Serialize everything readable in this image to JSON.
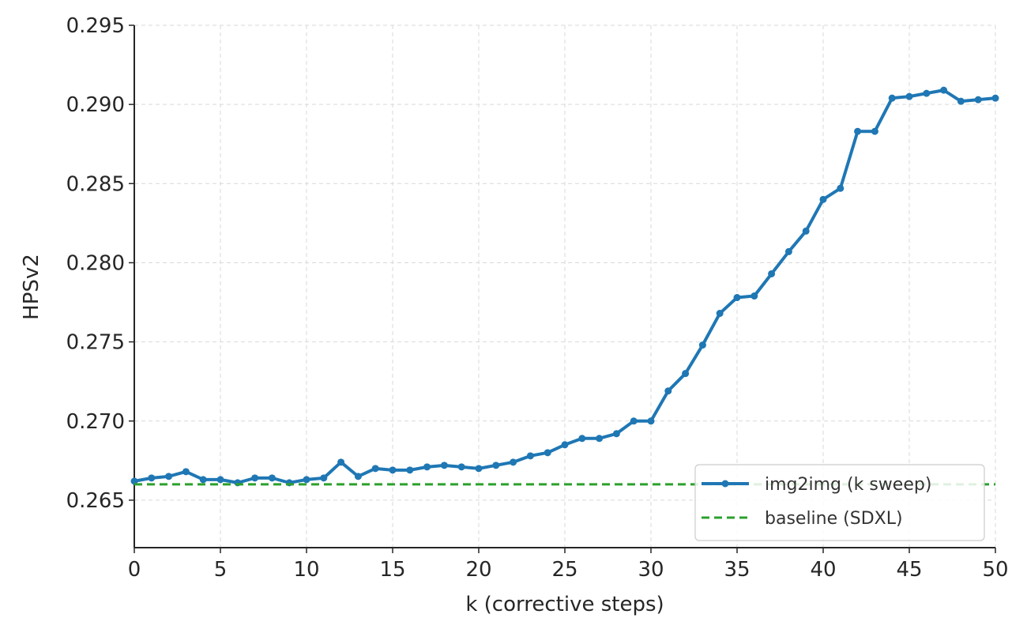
{
  "chart_data": {
    "type": "line",
    "title": "",
    "xlabel": "k (corrective steps)",
    "ylabel": "HPSv2",
    "xlim": [
      0,
      50
    ],
    "ylim": [
      0.262,
      0.295
    ],
    "xticks": [
      "0",
      "5",
      "10",
      "15",
      "20",
      "25",
      "30",
      "35",
      "40",
      "45",
      "50"
    ],
    "yticks": [
      "0.265",
      "0.270",
      "0.275",
      "0.280",
      "0.285",
      "0.290",
      "0.295"
    ],
    "grid": true,
    "legend_position": "lower-right",
    "series": [
      {
        "name": "img2img (k sweep)",
        "color": "#1f77b4",
        "style": "solid-with-markers",
        "x": [
          0,
          1,
          2,
          3,
          4,
          5,
          6,
          7,
          8,
          9,
          10,
          11,
          12,
          13,
          14,
          15,
          16,
          17,
          18,
          19,
          20,
          21,
          22,
          23,
          24,
          25,
          26,
          27,
          28,
          29,
          30,
          31,
          32,
          33,
          34,
          35,
          36,
          37,
          38,
          39,
          40,
          41,
          42,
          43,
          44,
          45,
          46,
          47,
          48,
          49,
          50
        ],
        "values": [
          0.2662,
          0.2664,
          0.2665,
          0.2668,
          0.2663,
          0.2663,
          0.2661,
          0.2664,
          0.2664,
          0.2661,
          0.2663,
          0.2664,
          0.2674,
          0.2665,
          0.267,
          0.2669,
          0.2669,
          0.2671,
          0.2672,
          0.2671,
          0.267,
          0.2672,
          0.2674,
          0.2678,
          0.268,
          0.2685,
          0.2689,
          0.2689,
          0.2692,
          0.27,
          0.27,
          0.2719,
          0.273,
          0.2748,
          0.2768,
          0.2778,
          0.2779,
          0.2793,
          0.2807,
          0.282,
          0.284,
          0.2847,
          0.2883,
          0.2883,
          0.2904,
          0.2905,
          0.2907,
          0.2909,
          0.2902,
          0.2903,
          0.2904
        ]
      },
      {
        "name": "baseline (SDXL)",
        "color": "#2ca02c",
        "style": "dashed",
        "x": [
          0,
          50
        ],
        "values": [
          0.266,
          0.266
        ]
      }
    ]
  }
}
